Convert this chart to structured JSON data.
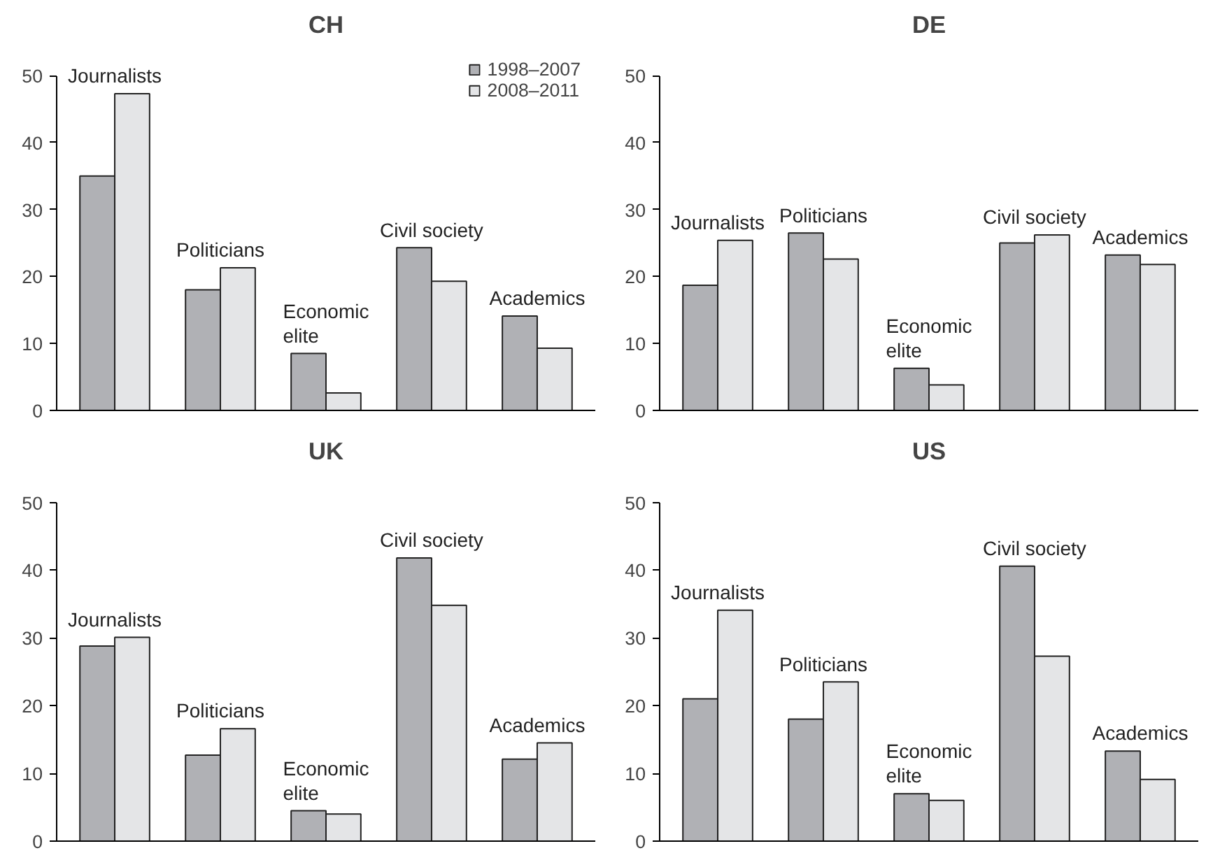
{
  "chart_data": [
    {
      "type": "bar",
      "title": "CH",
      "categories": [
        "Journalists",
        "Politicians",
        "Economic elite",
        "Civil society",
        "Academics"
      ],
      "ylim": [
        0,
        50
      ],
      "yticks": [
        0,
        10,
        20,
        30,
        40,
        50
      ],
      "tick_labels": "y",
      "grid": false,
      "legend": "top right",
      "series": [
        {
          "name": "1998–2007",
          "color": "#b0b1b5",
          "values": [
            35,
            18,
            8.5,
            24.3,
            14.1
          ]
        },
        {
          "name": "2008–2011",
          "color": "#e4e5e7",
          "values": [
            47.3,
            21.3,
            2.6,
            19.3,
            9.3
          ]
        }
      ]
    },
    {
      "type": "bar",
      "title": "DE",
      "categories": [
        "Journalists",
        "Politicians",
        "Economic elite",
        "Civil society",
        "Academics"
      ],
      "ylim": [
        0,
        50
      ],
      "yticks": [
        0,
        10,
        20,
        30,
        40,
        50
      ],
      "tick_labels": "y",
      "grid": false,
      "series": [
        {
          "color": "#b0b1b5",
          "values": [
            18.7,
            26.5,
            6.3,
            25,
            23.2
          ]
        },
        {
          "color": "#e4e5e7",
          "values": [
            25.4,
            22.6,
            3.8,
            26.2,
            21.8
          ]
        }
      ]
    },
    {
      "type": "bar",
      "title": "UK",
      "categories": [
        "Journalists",
        "Politicians",
        "Economic elite",
        "Civil society",
        "Academics"
      ],
      "ylim": [
        0,
        50
      ],
      "yticks": [
        0,
        10,
        20,
        30,
        40,
        50
      ],
      "tick_labels": "y",
      "grid": false,
      "series": [
        {
          "color": "#b0b1b5",
          "values": [
            28.8,
            12.7,
            4.5,
            41.8,
            12.1
          ]
        },
        {
          "color": "#e4e5e7",
          "values": [
            30.1,
            16.6,
            4,
            34.8,
            14.5
          ]
        }
      ]
    },
    {
      "type": "bar",
      "title": "US",
      "categories": [
        "Journalists",
        "Politicians",
        "Economic elite",
        "Civil society",
        "Academics"
      ],
      "ylim": [
        0,
        50
      ],
      "yticks": [
        0,
        10,
        20,
        30,
        40,
        50
      ],
      "tick_labels": "y",
      "grid": false,
      "series": [
        {
          "color": "#b0b1b5",
          "values": [
            21,
            18,
            7,
            40.6,
            13.3
          ]
        },
        {
          "color": "#e4e5e7",
          "values": [
            34.1,
            23.5,
            6,
            27.3,
            9.1
          ]
        }
      ]
    }
  ]
}
